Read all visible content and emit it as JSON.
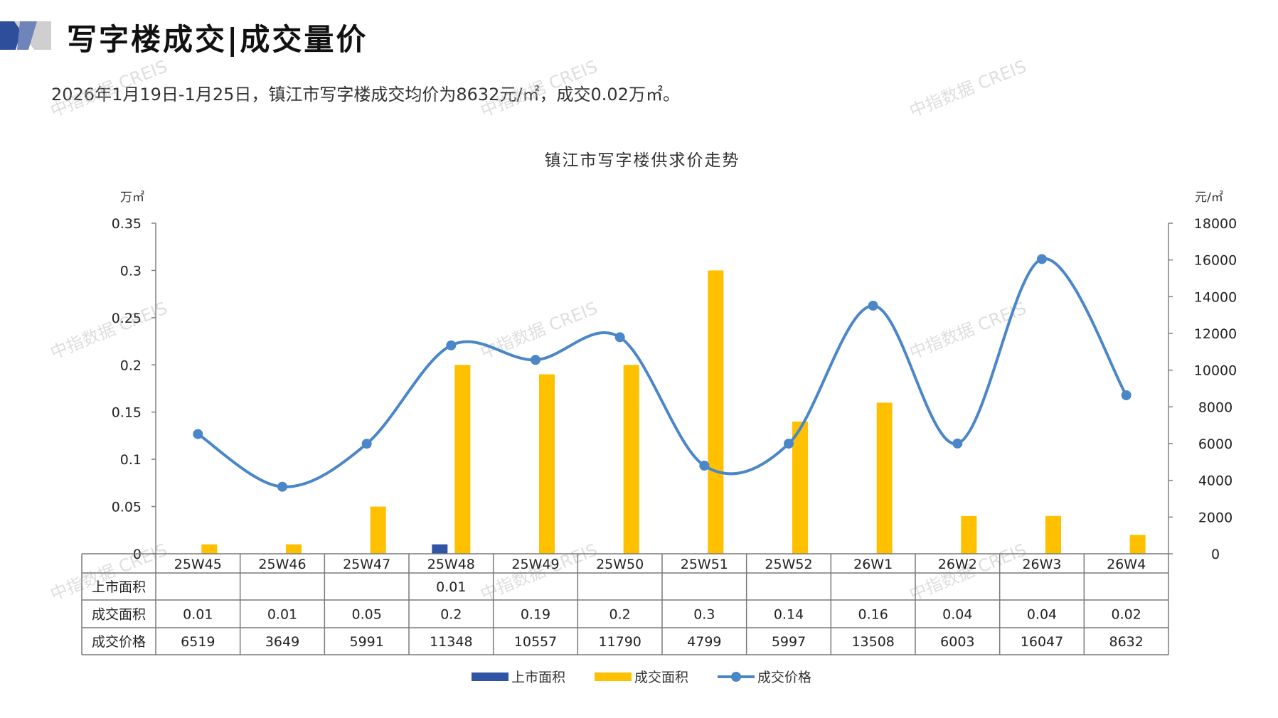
{
  "page": {
    "title": "写字楼成交|成交量价",
    "summary": "2026年1月19日-1月25日，镇江市写字楼成交均价为8632元/㎡，成交0.02万㎡。",
    "watermark": "中指数据 CREIS"
  },
  "colors": {
    "supply_bar": "#2f55a4",
    "deal_bar": "#ffc000",
    "price_line": "#4a86c8",
    "grid": "#808080",
    "deco_dark": "#2e4d9a",
    "deco_light": "#c8c8c8"
  },
  "chart_data": {
    "type": "bar",
    "title": "镇江市写字楼供求价走势",
    "left_unit": "万㎡",
    "right_unit": "元/㎡",
    "categories": [
      "25W45",
      "25W46",
      "25W47",
      "25W48",
      "25W49",
      "25W50",
      "25W51",
      "25W52",
      "26W1",
      "26W2",
      "26W3",
      "26W4"
    ],
    "ylim_left": [
      0,
      0.35
    ],
    "yticks_left": [
      "0",
      "0.05",
      "0.1",
      "0.15",
      "0.2",
      "0.25",
      "0.3",
      "0.35"
    ],
    "ylim_right": [
      0,
      18000
    ],
    "yticks_right": [
      "0",
      "2000",
      "4000",
      "6000",
      "8000",
      "10000",
      "12000",
      "14000",
      "16000",
      "18000"
    ],
    "legend_position": "bottom",
    "series": [
      {
        "name": "上市面积",
        "kind": "bar",
        "axis": "left",
        "values": [
          null,
          null,
          null,
          0.01,
          null,
          null,
          null,
          null,
          null,
          null,
          null,
          null
        ],
        "labels": [
          "",
          "",
          "",
          "0.01",
          "",
          "",
          "",
          "",
          "",
          "",
          "",
          ""
        ]
      },
      {
        "name": "成交面积",
        "kind": "bar",
        "axis": "left",
        "values": [
          0.01,
          0.01,
          0.05,
          0.2,
          0.19,
          0.2,
          0.3,
          0.14,
          0.16,
          0.04,
          0.04,
          0.02
        ],
        "labels": [
          "0.01",
          "0.01",
          "0.05",
          "0.2",
          "0.19",
          "0.2",
          "0.3",
          "0.14",
          "0.16",
          "0.04",
          "0.04",
          "0.02"
        ]
      },
      {
        "name": "成交价格",
        "kind": "line",
        "axis": "right",
        "values": [
          6519,
          3649,
          5991,
          11348,
          10557,
          11790,
          4799,
          5997,
          13508,
          6003,
          16047,
          8632
        ],
        "labels": [
          "6519",
          "3649",
          "5991",
          "11348",
          "10557",
          "11790",
          "4799",
          "5997",
          "13508",
          "6003",
          "16047",
          "8632"
        ]
      }
    ]
  }
}
